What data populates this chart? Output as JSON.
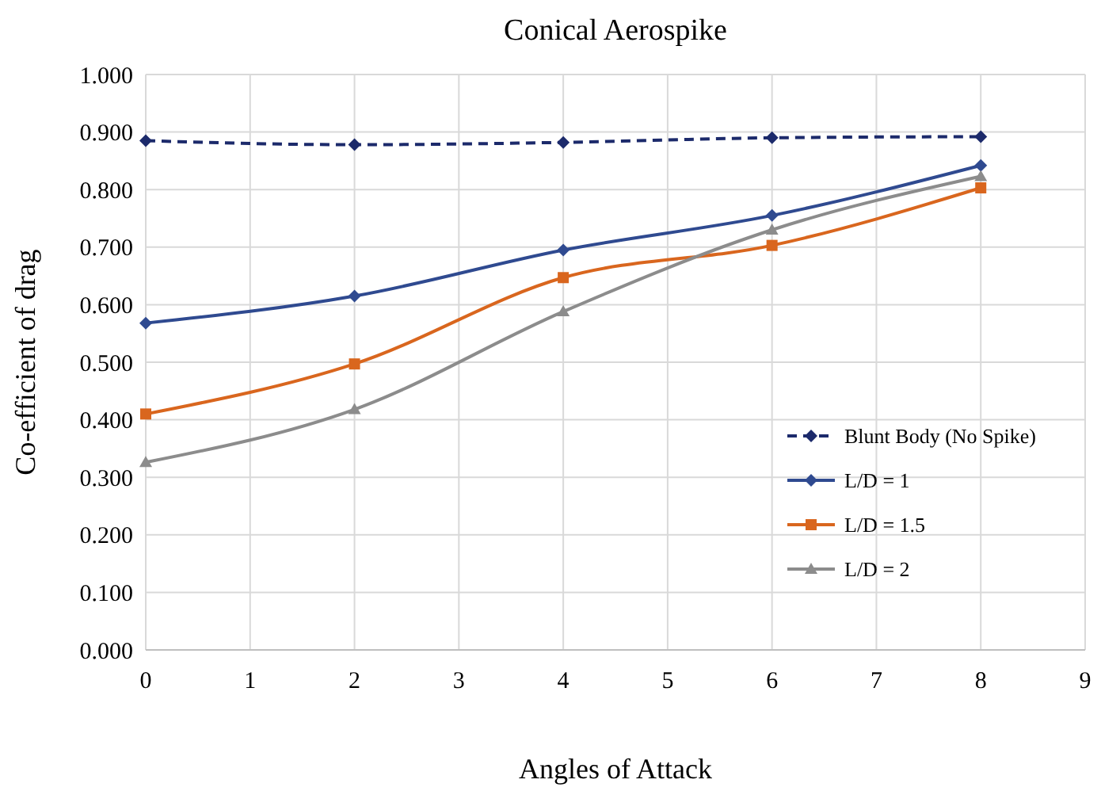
{
  "chart_data": {
    "type": "line",
    "title": "Conical Aerospike",
    "xlabel": "Angles of Attack",
    "ylabel": "Co-efficient of drag",
    "x": [
      0,
      2,
      4,
      6,
      8
    ],
    "series": [
      {
        "name": "Blunt Body (No Spike)",
        "color": "#1c2a6b",
        "values": [
          0.885,
          0.878,
          0.882,
          0.89,
          0.892
        ],
        "marker": "diamond",
        "line_style": "dashed"
      },
      {
        "name": "L/D = 1",
        "color": "#2f4a90",
        "values": [
          0.568,
          0.615,
          0.695,
          0.755,
          0.842
        ],
        "marker": "diamond",
        "line_style": "solid"
      },
      {
        "name": "L/D = 1.5",
        "color": "#d9661e",
        "values": [
          0.41,
          0.497,
          0.647,
          0.703,
          0.803
        ],
        "marker": "square",
        "line_style": "solid"
      },
      {
        "name": "L/D = 2",
        "color": "#8c8c8c",
        "values": [
          0.326,
          0.418,
          0.588,
          0.73,
          0.823
        ],
        "marker": "triangle",
        "line_style": "solid"
      }
    ],
    "xlim": [
      0,
      9
    ],
    "xticks": [
      0,
      1,
      2,
      3,
      4,
      5,
      6,
      7,
      8,
      9
    ],
    "ylim": [
      0,
      1
    ],
    "yticks": [
      {
        "value": 0,
        "label": "0.000"
      },
      {
        "value": 0.1,
        "label": "0.100"
      },
      {
        "value": 0.2,
        "label": "0.200"
      },
      {
        "value": 0.3,
        "label": "0.300"
      },
      {
        "value": 0.4,
        "label": "0.400"
      },
      {
        "value": 0.5,
        "label": "0.500"
      },
      {
        "value": 0.6,
        "label": "0.600"
      },
      {
        "value": 0.7,
        "label": "0.700"
      },
      {
        "value": 0.8,
        "label": "0.800"
      },
      {
        "value": 0.9,
        "label": "0.900"
      },
      {
        "value": 1,
        "label": "1.000"
      }
    ],
    "grid": true,
    "legend": "bottom right"
  }
}
